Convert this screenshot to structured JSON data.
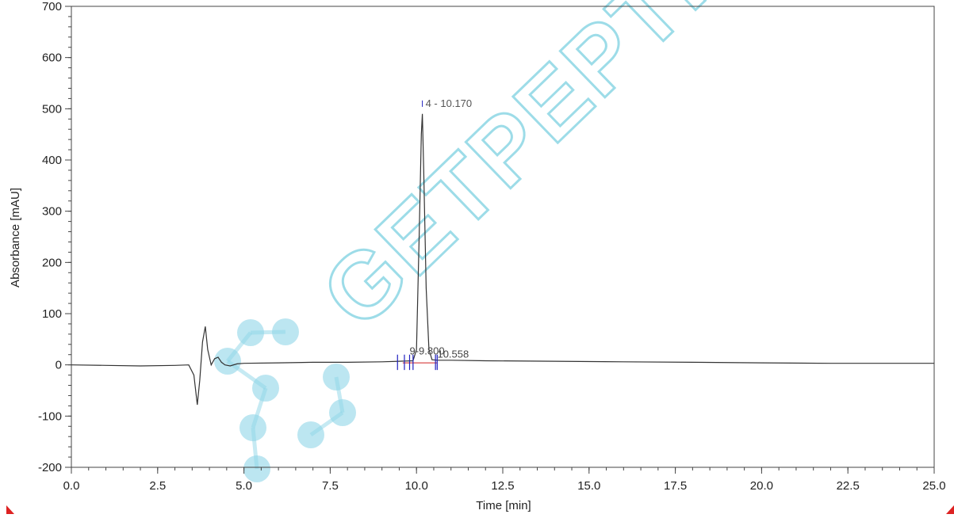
{
  "chart_data": {
    "type": "line",
    "xlabel": "Time [min]",
    "ylabel": "Absorbance [mAU]",
    "xlim": [
      0,
      25
    ],
    "ylim": [
      -200,
      700
    ],
    "x_ticks": [
      "0.0",
      "2.5",
      "5.0",
      "7.5",
      "10.0",
      "12.5",
      "15.0",
      "17.5",
      "20.0",
      "22.5",
      "25.0"
    ],
    "y_ticks": [
      "-200",
      "-100",
      "0",
      "100",
      "200",
      "300",
      "400",
      "500",
      "600",
      "700"
    ],
    "grid": false,
    "series": [
      {
        "color": "#333333",
        "x": [
          0,
          1,
          2,
          3,
          3.4,
          3.55,
          3.65,
          3.72,
          3.8,
          3.88,
          3.95,
          4.05,
          4.15,
          4.25,
          4.35,
          4.45,
          4.6,
          4.8,
          5.0,
          6,
          7,
          8,
          9,
          9.5,
          9.9,
          10.0,
          10.08,
          10.14,
          10.17,
          10.21,
          10.28,
          10.36,
          10.45,
          10.6,
          11,
          12,
          14,
          16,
          18,
          20,
          22,
          24,
          25
        ],
        "y": [
          0,
          -1,
          -2,
          -1,
          0,
          -20,
          -78,
          -30,
          45,
          75,
          30,
          0,
          12,
          15,
          5,
          0,
          -2,
          2,
          3,
          4,
          5,
          5,
          6,
          7,
          8,
          30,
          260,
          450,
          490,
          380,
          150,
          30,
          10,
          9,
          9,
          8,
          7,
          6,
          5,
          4,
          3,
          3,
          3
        ]
      }
    ],
    "peak_labels": [
      {
        "text": "4 - 10.170",
        "x": 10.17,
        "y": 510
      },
      {
        "text": "10.558",
        "x": 10.558,
        "y": 20
      }
    ],
    "cluster_fragments": "9-9.800",
    "marker_times": [
      9.45,
      9.65,
      9.8,
      9.9,
      10.55,
      10.6
    ],
    "baseline_segment": [
      9.6,
      10.6
    ]
  },
  "watermark": {
    "text": "GETPEPTIDES",
    "color": "#4ec1d6"
  }
}
